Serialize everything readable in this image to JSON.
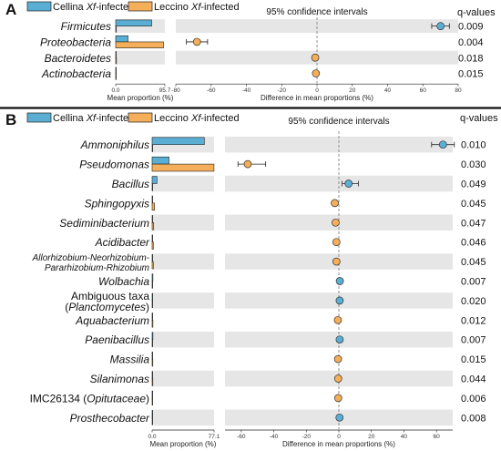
{
  "chart_data": [
    {
      "type": "bar",
      "panel": "A",
      "legend": [
        {
          "name": "Cellina Xf-infected",
          "color": "#5aaed4"
        },
        {
          "name": "Leccino Xf-infected",
          "color": "#f5ae5a"
        }
      ],
      "ci_title": "95% confidence intervals",
      "q_header": "q-values",
      "xlabel_left": "Mean proportion (%)",
      "xlabel_right": "Difference in mean proportions (%)",
      "left_ticks": [
        "0.0",
        "95.7"
      ],
      "left_max": 95.7,
      "right_xlim": [
        -80,
        80
      ],
      "right_ticks": [
        -80,
        -60,
        -40,
        -20,
        0,
        20,
        40,
        60,
        80
      ],
      "rows": [
        {
          "name": "Firmicutes",
          "cellina": 70,
          "leccino": 0.5,
          "diff": 70,
          "ci": [
            65,
            75
          ],
          "q": "0.009"
        },
        {
          "name": "Proteobacteria",
          "cellina": 24,
          "leccino": 93,
          "diff": -68,
          "ci": [
            -74,
            -62
          ],
          "q": "0.004"
        },
        {
          "name": "Bacteroidetes",
          "cellina": 1,
          "leccino": 1.5,
          "diff": -1,
          "ci": [
            -1.6,
            -0.4
          ],
          "q": "0.018"
        },
        {
          "name": "Actinobacteria",
          "cellina": 0.8,
          "leccino": 1.2,
          "diff": -0.6,
          "ci": [
            -1.2,
            0
          ],
          "q": "0.015"
        }
      ]
    },
    {
      "type": "bar",
      "panel": "B",
      "legend": [
        {
          "name": "Cellina Xf-infected",
          "color": "#5aaed4"
        },
        {
          "name": "Leccino Xf-infected",
          "color": "#f5ae5a"
        }
      ],
      "ci_title": "95% confidence intervals",
      "q_header": "q-values",
      "xlabel_left": "Mean proportion (%)",
      "xlabel_right": "Difference in mean proportions (%)",
      "left_ticks": [
        "0.0",
        "77.1"
      ],
      "left_max": 77.1,
      "right_xlim": [
        -70,
        70
      ],
      "right_ticks": [
        -60,
        -40,
        -20,
        0,
        20,
        40,
        60
      ],
      "rows": [
        {
          "name": "Ammoniphilus",
          "cellina": 65,
          "leccino": 0.5,
          "diff": 64,
          "ci": [
            57,
            71
          ],
          "q": "0.010"
        },
        {
          "name": "Pseudomonas",
          "cellina": 21,
          "leccino": 77,
          "diff": -56,
          "ci": [
            -62,
            -45
          ],
          "q": "0.030"
        },
        {
          "name": "Bacillus",
          "cellina": 6,
          "leccino": 0.5,
          "diff": 6,
          "ci": [
            2,
            12
          ],
          "q": "0.049"
        },
        {
          "name": "Sphingopyxis",
          "cellina": 0.5,
          "leccino": 3,
          "diff": -2.5,
          "ci": [
            -3.5,
            -1.5
          ],
          "q": "0.045"
        },
        {
          "name": "Sediminibacterium",
          "cellina": 0.5,
          "leccino": 2,
          "diff": -2,
          "ci": [
            -3,
            -1
          ],
          "q": "0.047"
        },
        {
          "name": "Acidibacter",
          "cellina": 0.5,
          "leccino": 1.5,
          "diff": -1.5,
          "ci": [
            -2.5,
            -0.5
          ],
          "q": "0.046"
        },
        {
          "name": "Allorhizobium-Neorhizobium-Pararhizobium-Rhizobium",
          "lines": [
            "Allorhizobium-Neorhizobium-",
            "Pararhizobium-Rhizobium"
          ],
          "cellina": 0.5,
          "leccino": 1.5,
          "diff": -1.5,
          "ci": [
            -2.5,
            -0.5
          ],
          "q": "0.045"
        },
        {
          "name": "Wolbachia",
          "cellina": 1,
          "leccino": 0.3,
          "diff": 0.6,
          "ci": [
            0.2,
            1
          ],
          "q": "0.007"
        },
        {
          "name": "Ambiguous taxa (Planctomycetes)",
          "lines": [
            "Ambiguous taxa",
            "(Planctomycetes)"
          ],
          "cellina": 0.8,
          "leccino": 0.3,
          "diff": 0.5,
          "ci": [
            0.1,
            0.9
          ],
          "q": "0.020"
        },
        {
          "name": "Aquabacterium",
          "cellina": 0.3,
          "leccino": 1,
          "diff": -0.6,
          "ci": [
            -1,
            -0.2
          ],
          "q": "0.012"
        },
        {
          "name": "Paenibacillus",
          "cellina": 1,
          "leccino": 0.3,
          "diff": 0.5,
          "ci": [
            0.1,
            0.9
          ],
          "q": "0.007"
        },
        {
          "name": "Massilia",
          "cellina": 0.3,
          "leccino": 0.9,
          "diff": -0.5,
          "ci": [
            -0.9,
            -0.1
          ],
          "q": "0.015"
        },
        {
          "name": "Silanimonas",
          "cellina": 0.3,
          "leccino": 0.9,
          "diff": -0.4,
          "ci": [
            -0.8,
            0
          ],
          "q": "0.044"
        },
        {
          "name": "IMC26134 (Opitutaceae)",
          "cellina": 0.3,
          "leccino": 0.8,
          "diff": -0.4,
          "ci": [
            -0.8,
            0
          ],
          "q": "0.006"
        },
        {
          "name": "Prosthecobacter",
          "cellina": 0.8,
          "leccino": 0.2,
          "diff": 0.4,
          "ci": [
            0,
            0.8
          ],
          "q": "0.008"
        }
      ]
    }
  ]
}
